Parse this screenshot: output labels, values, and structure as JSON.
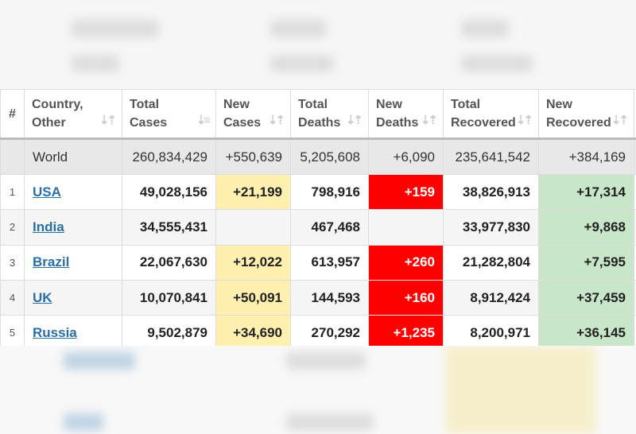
{
  "headers": [
    {
      "l1": "",
      "l2": "#"
    },
    {
      "l1": "Country,",
      "l2": "Other"
    },
    {
      "l1": "Total",
      "l2": "Cases"
    },
    {
      "l1": "New",
      "l2": "Cases"
    },
    {
      "l1": "Total",
      "l2": "Deaths"
    },
    {
      "l1": "New",
      "l2": "Deaths"
    },
    {
      "l1": "Total",
      "l2": "Recovered"
    },
    {
      "l1": "New",
      "l2": "Recovered"
    }
  ],
  "sort_icon": "⇣⇡",
  "sorted_icon": "⇣≡",
  "world": {
    "country": "World",
    "total_cases": "260,834,429",
    "new_cases": "+550,639",
    "total_deaths": "5,205,608",
    "new_deaths": "+6,090",
    "total_recovered": "235,641,542",
    "new_recovered": "+384,169"
  },
  "rows": [
    {
      "rank": "1",
      "country": "USA",
      "total_cases": "49,028,156",
      "new_cases": "+21,199",
      "total_deaths": "798,916",
      "new_deaths": "+159",
      "total_recovered": "38,826,913",
      "new_recovered": "+17,314"
    },
    {
      "rank": "2",
      "country": "India",
      "total_cases": "34,555,431",
      "new_cases": "",
      "total_deaths": "467,468",
      "new_deaths": "",
      "total_recovered": "33,977,830",
      "new_recovered": "+9,868"
    },
    {
      "rank": "3",
      "country": "Brazil",
      "total_cases": "22,067,630",
      "new_cases": "+12,022",
      "total_deaths": "613,957",
      "new_deaths": "+260",
      "total_recovered": "21,282,804",
      "new_recovered": "+7,595"
    },
    {
      "rank": "4",
      "country": "UK",
      "total_cases": "10,070,841",
      "new_cases": "+50,091",
      "total_deaths": "144,593",
      "new_deaths": "+160",
      "total_recovered": "8,912,424",
      "new_recovered": "+37,459"
    },
    {
      "rank": "5",
      "country": "Russia",
      "total_cases": "9,502,879",
      "new_cases": "+34,690",
      "total_deaths": "270,292",
      "new_deaths": "+1,235",
      "total_recovered": "8,200,971",
      "new_recovered": "+36,145"
    }
  ]
}
